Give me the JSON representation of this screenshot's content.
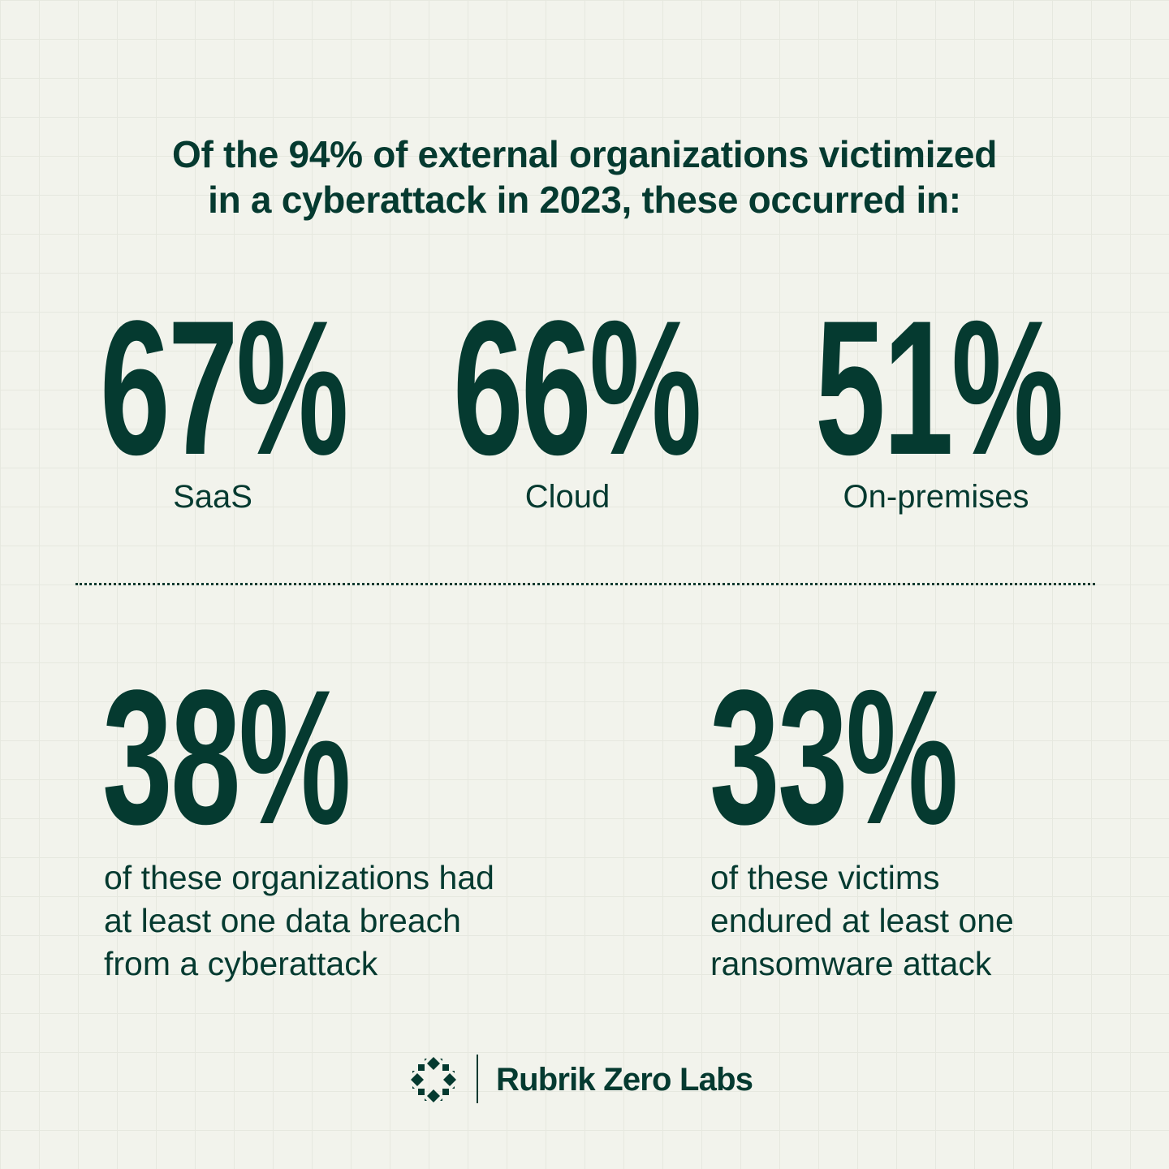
{
  "title_line1": "Of the 94% of external organizations victimized",
  "title_line2": "in a cyberattack in 2023, these occurred in:",
  "top_stats": [
    {
      "value": "67%",
      "label": "SaaS"
    },
    {
      "value": "66%",
      "label": "Cloud"
    },
    {
      "value": "51%",
      "label": "On-premises"
    }
  ],
  "bottom_stats": [
    {
      "value": "38%",
      "lines": [
        "of these organizations had",
        "at least one data breach",
        "from a cyberattack"
      ]
    },
    {
      "value": "33%",
      "lines": [
        "of these victims",
        "endured at least one",
        "ransomware attack"
      ]
    }
  ],
  "brand": "Rubrik Zero Labs",
  "colors": {
    "background": "#f2f3ec",
    "text": "#053a30"
  },
  "logo_icon": "rubrik-diamond-ring-logo"
}
